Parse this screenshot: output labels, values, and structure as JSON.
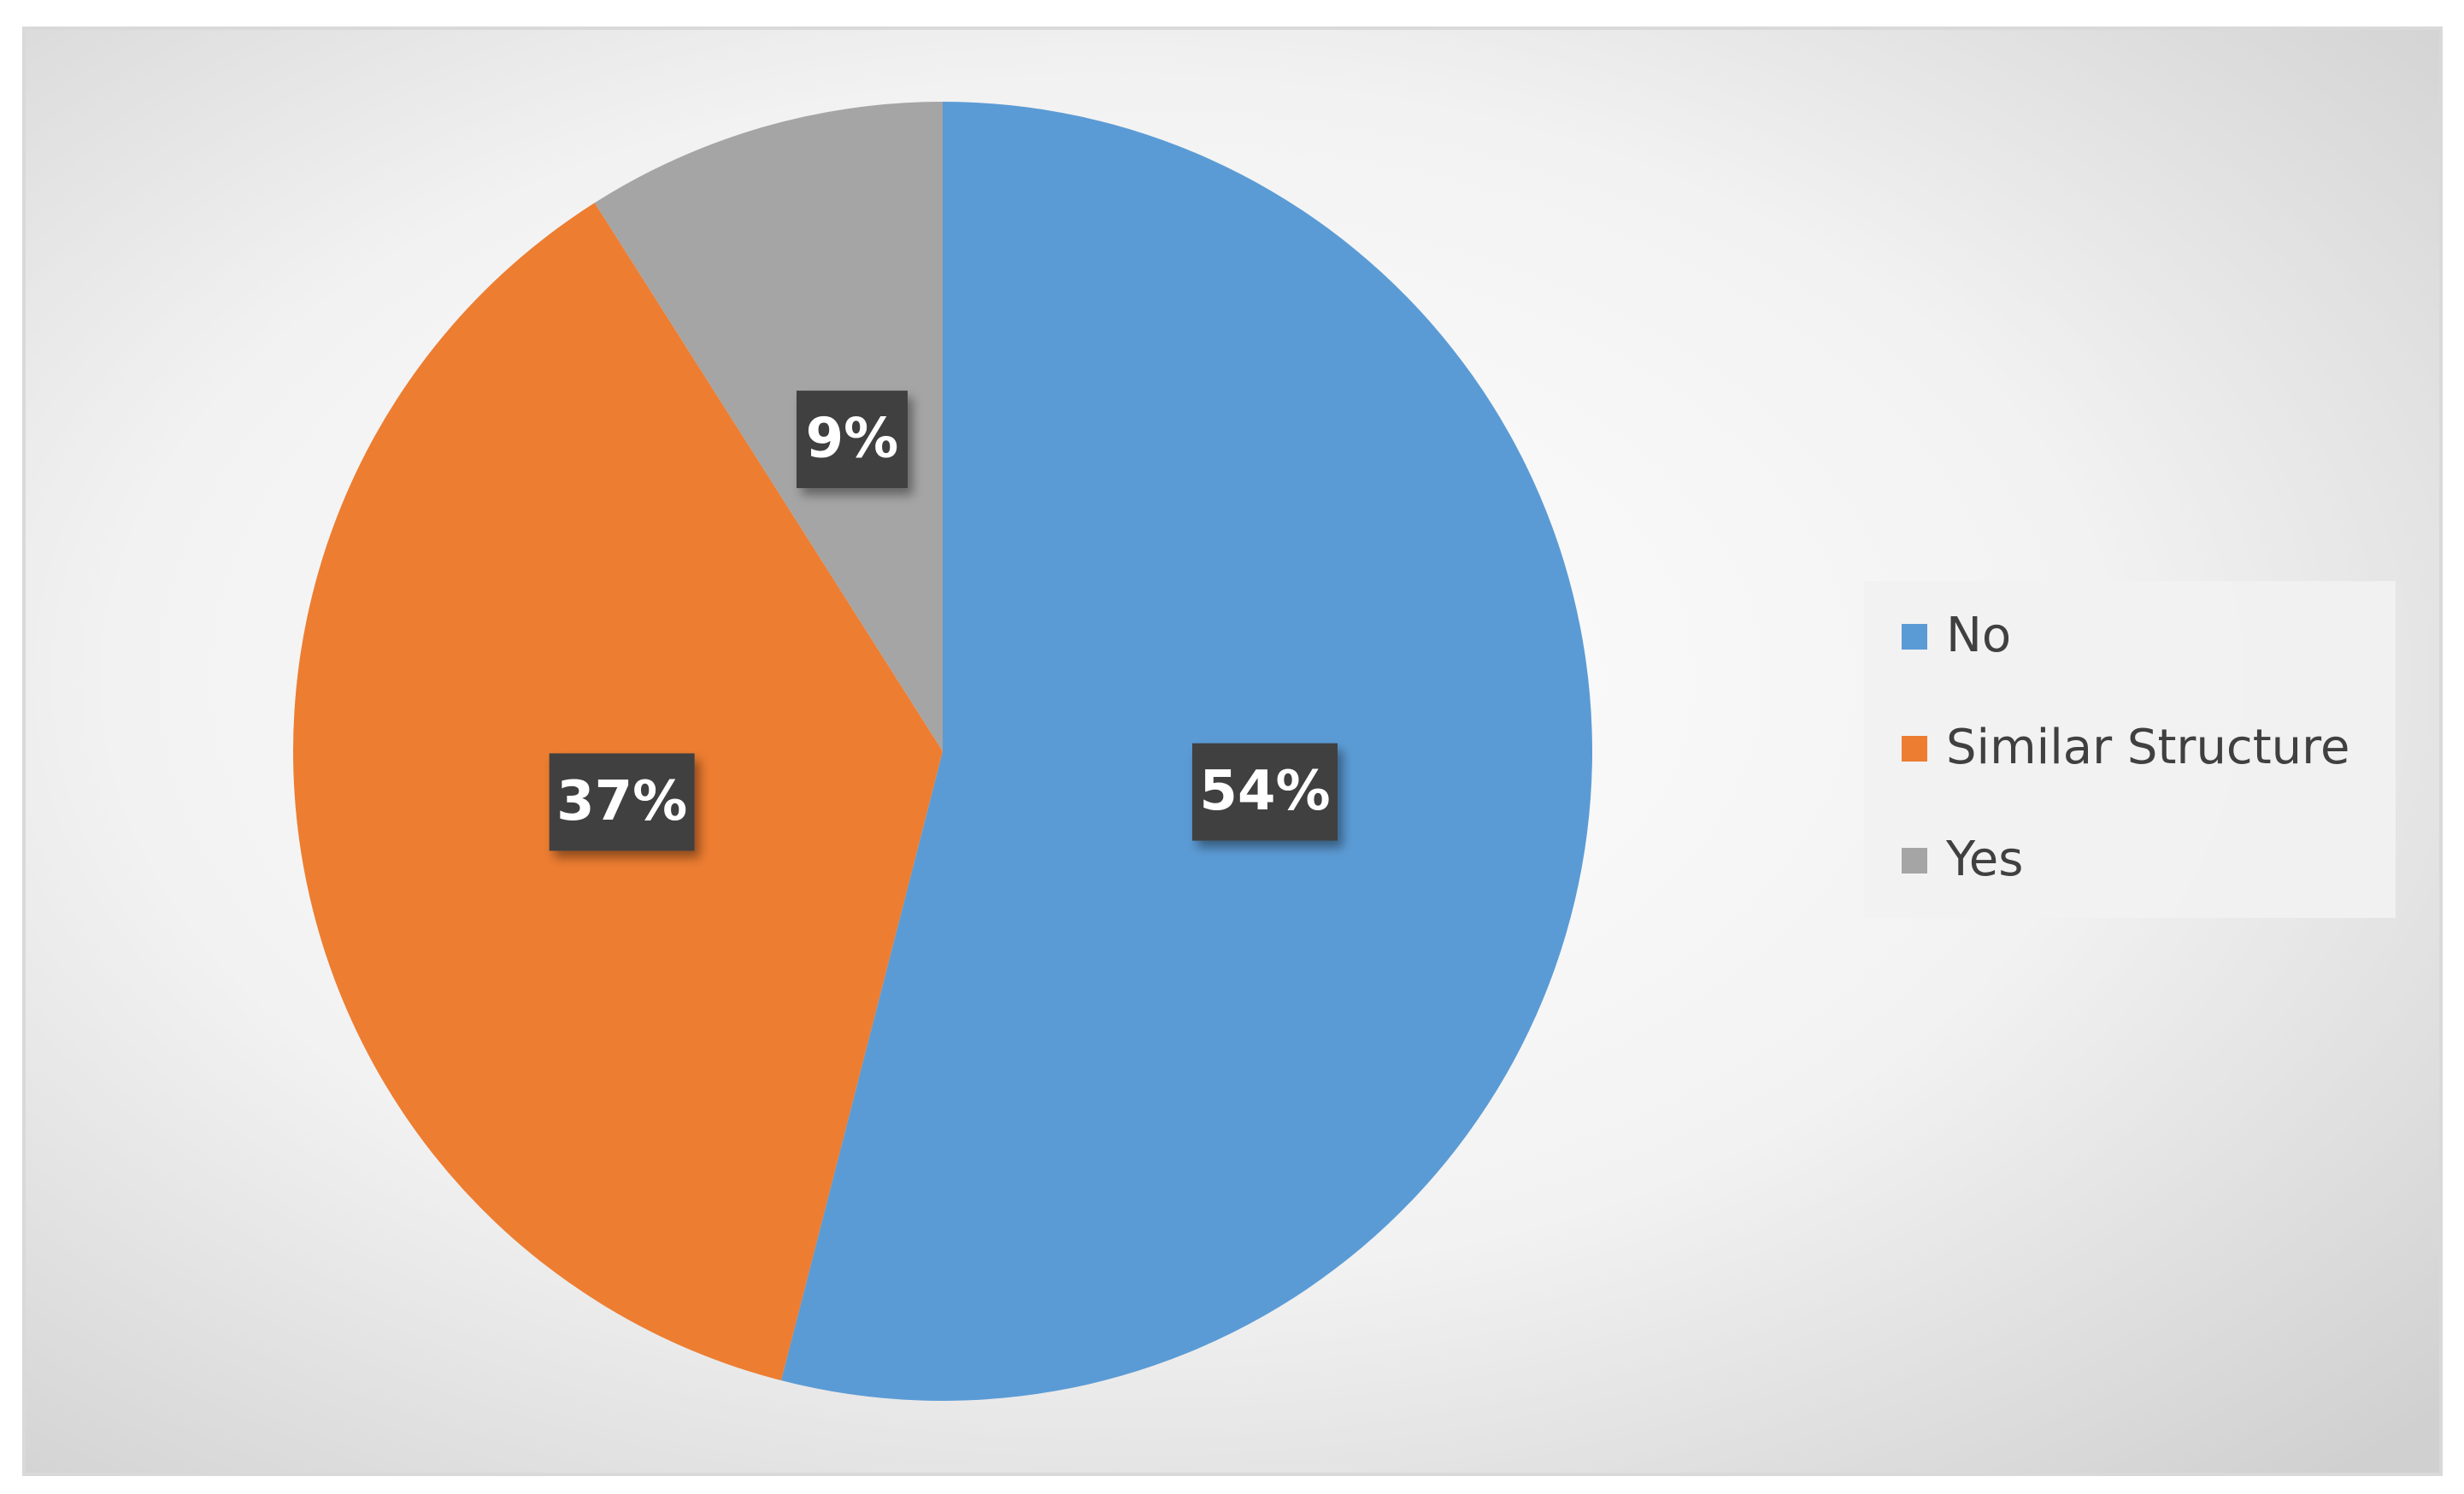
{
  "chart_data": {
    "type": "pie",
    "categories": [
      "No",
      "Similar Structure",
      "Yes"
    ],
    "values": [
      54,
      37,
      9
    ],
    "value_labels": [
      "54%",
      "37%",
      "9%"
    ],
    "colors": [
      "#5b9bd5",
      "#ed7d31",
      "#a5a5a5"
    ],
    "legend": "right"
  }
}
